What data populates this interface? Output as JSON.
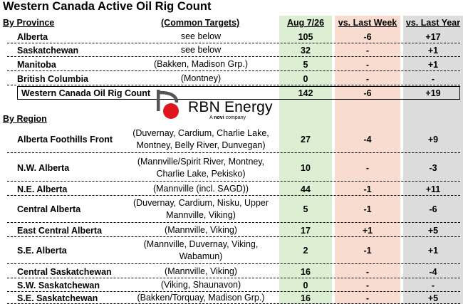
{
  "title": "Western Canada Active Oil Rig Count",
  "headers": {
    "by_province": "By Province",
    "common_targets": "(Common Targets)",
    "aug": "Aug 7/26",
    "vs_week": "vs. Last Week",
    "vs_year": "vs. Last Year",
    "by_region": "By Region"
  },
  "provinces": [
    {
      "name": "Alberta",
      "targets": "see below",
      "aug": "105",
      "week": "-6",
      "year": "+17"
    },
    {
      "name": "Saskatchewan",
      "targets": "see below",
      "aug": "32",
      "week": "-",
      "year": "+1"
    },
    {
      "name": "Manitoba",
      "targets": "(Bakken, Madison Grp.)",
      "aug": "5",
      "week": "-",
      "year": "+1"
    },
    {
      "name": "British Columbia",
      "targets": "(Montney)",
      "aug": "0",
      "week": "-",
      "year": "-"
    }
  ],
  "total": {
    "name": "Western Canada Oil Rig Count",
    "aug": "142",
    "week": "-6",
    "year": "+19"
  },
  "logo": {
    "brand": "RBN Energy",
    "sub_prefix": "A",
    "sub_brand": "novi",
    "sub_suffix": "company",
    "red": "#e0141e"
  },
  "regions": [
    {
      "name": "Alberta Foothills Front",
      "targets": "(Duvernay, Cardium, Charlie Lake, Montney, Belly River, Dunvegan)",
      "aug": "27",
      "week": "-4",
      "year": "+9"
    },
    {
      "name": "N.W. Alberta",
      "targets": "(Mannville/Spirit River, Montney, Charlie Lake, Pekisko)",
      "aug": "10",
      "week": "-",
      "year": "-3"
    },
    {
      "name": "N.E. Alberta",
      "targets": "(Mannville (incl. SAGD))",
      "aug": "44",
      "week": "-1",
      "year": "+11"
    },
    {
      "name": "Central Alberta",
      "targets": "(Duvernay, Cardium, Nisku, Upper Mannville, Viking)",
      "aug": "5",
      "week": "-1",
      "year": "-6"
    },
    {
      "name": "East Central Alberta",
      "targets": "(Mannville, Viking)",
      "aug": "17",
      "week": "+1",
      "year": "+5"
    },
    {
      "name": "S.E. Alberta",
      "targets": "(Mannville, Duvernay, Viking, Wabamun)",
      "aug": "2",
      "week": "-1",
      "year": "+1"
    },
    {
      "name": "Central Saskatchewan",
      "targets": "(Mannville, Viking)",
      "aug": "16",
      "week": "-",
      "year": "-4"
    },
    {
      "name": "S.W. Saskatchewan",
      "targets": "(Viking, Shaunavon)",
      "aug": "0",
      "week": "-",
      "year": "-"
    },
    {
      "name": "S.E. Saskatchewan",
      "targets": "(Bakken/Torquay, Madison Grp.)",
      "aug": "16",
      "week": "-",
      "year": "+5"
    }
  ]
}
